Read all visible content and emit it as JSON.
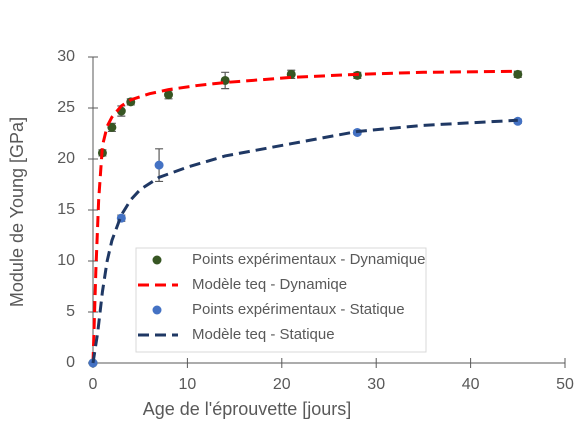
{
  "chart_data": {
    "type": "scatter",
    "xlabel": "Age de l'éprouvette [jours]",
    "ylabel": "Module de Young [GPa]",
    "xlim": [
      0,
      50
    ],
    "xticks": [
      0,
      10,
      20,
      30,
      40,
      50
    ],
    "ylim": [
      0,
      30
    ],
    "yticks": [
      0,
      5,
      10,
      15,
      20,
      25,
      30
    ],
    "grid": false,
    "legend": "lower right",
    "series": [
      {
        "name": "Points expérimentaux - Dynamique",
        "style": "points",
        "color": "#375623",
        "x": [
          0,
          1,
          2,
          3,
          4,
          8,
          14,
          21,
          28,
          45
        ],
        "values": [
          0,
          20.6,
          23.1,
          24.7,
          25.6,
          26.3,
          27.7,
          28.3,
          28.2,
          28.3
        ],
        "errors": [
          0,
          0.3,
          0.4,
          0.5,
          0.3,
          0.4,
          0.8,
          0.4,
          0.3,
          0.3
        ]
      },
      {
        "name": "Modèle teq - Dynamiqe",
        "style": "dashed-line",
        "color": "#ff0000",
        "x": [
          0,
          0.3,
          0.6,
          1,
          1.5,
          2,
          3,
          4,
          6,
          8,
          11,
          14,
          21,
          28,
          35,
          45
        ],
        "values": [
          0,
          9,
          16,
          21.3,
          23.2,
          24.1,
          25.2,
          25.8,
          26.4,
          26.8,
          27.2,
          27.5,
          28,
          28.3,
          28.5,
          28.6
        ]
      },
      {
        "name": "Points expérimentaux - Statique",
        "style": "points",
        "color": "#4472c4",
        "x": [
          0,
          3,
          7,
          28,
          45
        ],
        "values": [
          0,
          14.2,
          19.4,
          22.6,
          23.7
        ],
        "errors": [
          0,
          0.3,
          1.6,
          0.2,
          0.2
        ]
      },
      {
        "name": "Modèle teq - Statique",
        "style": "dashed-line",
        "color": "#1f3864",
        "x": [
          0,
          0.5,
          1,
          1.5,
          2,
          3,
          4,
          5,
          7,
          10,
          14,
          21,
          28,
          35,
          45
        ],
        "values": [
          0,
          3,
          7,
          10,
          12,
          14.5,
          16,
          17,
          18.2,
          19.2,
          20.3,
          21.5,
          22.7,
          23.3,
          23.8
        ]
      }
    ]
  }
}
